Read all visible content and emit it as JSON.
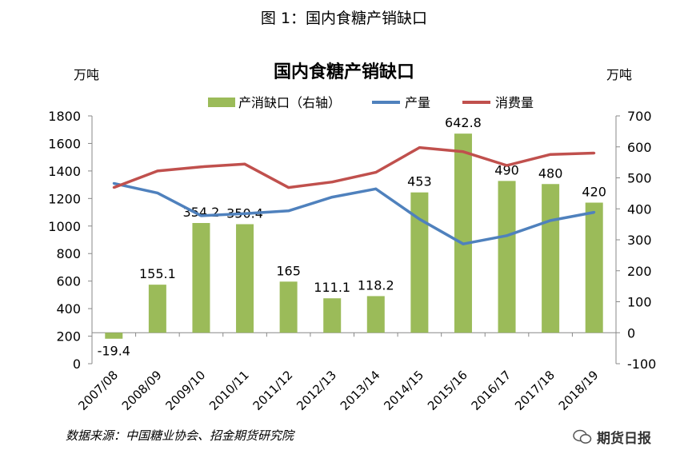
{
  "figure_caption": "图 1：国内食糖产销缺口",
  "left_unit": "万吨",
  "right_unit": "万吨",
  "source": "数据来源：中国糖业协会、招金期货研究院",
  "watermark": "期货日报",
  "colors": {
    "bar": "#9bbb59",
    "production": "#4f81bd",
    "consumption": "#c0504d"
  },
  "chart_data": {
    "type": "bar",
    "title": "国内食糖产销缺口",
    "categories": [
      "2007/08",
      "2008/09",
      "2009/10",
      "2010/11",
      "2011/12",
      "2012/13",
      "2013/14",
      "2014/15",
      "2015/16",
      "2016/17",
      "2017/18",
      "2018/19"
    ],
    "series": [
      {
        "name": "产消缺口（右轴）",
        "type": "bar",
        "axis": "right",
        "values": [
          -19.4,
          155.1,
          354.2,
          350.4,
          165,
          111.1,
          118.2,
          453,
          642.8,
          490,
          480,
          420
        ],
        "labels": [
          "-19.4",
          "155.1",
          "354.2",
          "350.4",
          "165",
          "111.1",
          "118.2",
          "453",
          "642.8",
          "490",
          "480",
          "420"
        ]
      },
      {
        "name": "产量",
        "type": "line",
        "axis": "left",
        "values": [
          1310,
          1240,
          1075,
          1090,
          1110,
          1210,
          1270,
          1050,
          870,
          930,
          1040,
          1100
        ]
      },
      {
        "name": "消费量",
        "type": "line",
        "axis": "left",
        "values": [
          1280,
          1400,
          1430,
          1450,
          1280,
          1320,
          1390,
          1570,
          1540,
          1440,
          1520,
          1530
        ]
      }
    ],
    "left_axis": {
      "min": 0,
      "max": 1800,
      "ticks": [
        0,
        200,
        400,
        600,
        800,
        1000,
        1200,
        1400,
        1600,
        1800
      ]
    },
    "right_axis": {
      "min": -100,
      "max": 700,
      "ticks": [
        -100,
        0,
        100,
        200,
        300,
        400,
        500,
        600,
        700
      ]
    },
    "legend_position": "top",
    "grid": false
  }
}
